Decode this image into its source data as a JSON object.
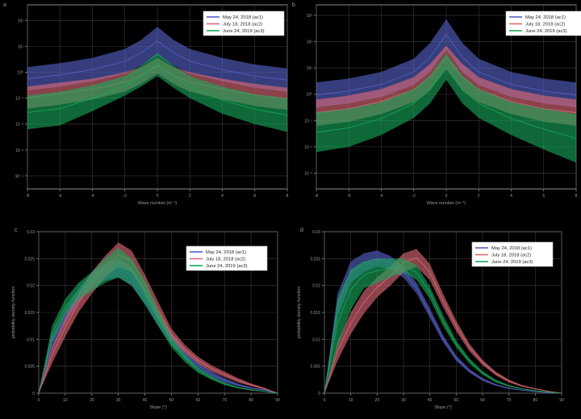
{
  "figure": {
    "background": "#000000",
    "axis_color": "#8a8a8a",
    "grid_color": "#3a3a3a",
    "text_color": "#9a9a9a",
    "series_colors": {
      "ac1": "#5563c8",
      "ac2": "#e06a78",
      "ac3": "#19a85a"
    }
  },
  "chart_data": [
    {
      "type": "area",
      "panel_label": "a",
      "title": "",
      "xlabel": "Wave number (m⁻¹)",
      "ylabel": "",
      "x_ticks": [
        "-8",
        "-6",
        "-4",
        "-2",
        "0",
        "2",
        "4",
        "6",
        "8"
      ],
      "xlim": [
        -8,
        8
      ],
      "y_log": true,
      "ylim": [
        -4.5,
        2.6
      ],
      "y_ticks": [
        "10⁻⁴",
        "10⁻³",
        "10⁻²",
        "10⁻¹",
        "10⁰",
        "10¹",
        "10²"
      ],
      "grid": true,
      "legend_position": "top-right",
      "x": [
        -8,
        -6,
        -4,
        -2,
        -1,
        0,
        1,
        2,
        4,
        6,
        8
      ],
      "series": [
        {
          "name": "May 24, 2018 (ac1)",
          "key": "ac1",
          "lower": [
            -0.7,
            -0.55,
            -0.35,
            -0.05,
            0.25,
            0.65,
            0.25,
            -0.05,
            -0.35,
            -0.6,
            -0.75
          ],
          "upper": [
            0.2,
            0.35,
            0.55,
            0.9,
            1.25,
            1.75,
            1.25,
            0.9,
            0.55,
            0.3,
            0.15
          ]
        },
        {
          "name": "July 18, 2018 (ac2)",
          "key": "ac2",
          "lower": [
            -1.4,
            -1.25,
            -1.05,
            -0.75,
            -0.45,
            -0.05,
            -0.45,
            -0.75,
            -1.05,
            -1.3,
            -1.45
          ],
          "upper": [
            -0.55,
            -0.4,
            -0.25,
            0.0,
            0.2,
            0.55,
            0.2,
            0.0,
            -0.25,
            -0.45,
            -0.6
          ]
        },
        {
          "name": "June 24, 2019 (ac3)",
          "key": "ac3",
          "lower": [
            -2.2,
            -2.05,
            -1.5,
            -0.9,
            -0.55,
            -0.15,
            -0.6,
            -1.0,
            -1.6,
            -2.0,
            -2.3
          ],
          "upper": [
            -0.9,
            -0.75,
            -0.5,
            -0.15,
            0.25,
            0.75,
            0.25,
            -0.15,
            -0.55,
            -0.85,
            -1.0
          ]
        }
      ]
    },
    {
      "type": "area",
      "panel_label": "b",
      "title": "",
      "xlabel": "Wave number (m⁻¹)",
      "ylabel": "",
      "x_ticks": [
        "-8",
        "-6",
        "-4",
        "-2",
        "0",
        "2",
        "4",
        "6",
        "8"
      ],
      "xlim": [
        -8,
        8
      ],
      "y_log": true,
      "ylim": [
        -3.6,
        3.4
      ],
      "y_ticks": [
        "10⁻³",
        "10⁻²",
        "10⁻¹",
        "10⁰",
        "10¹",
        "10²",
        "10³"
      ],
      "grid": true,
      "legend_position": "top-right",
      "x": [
        -8,
        -6,
        -4,
        -2,
        -1,
        0,
        1,
        2,
        4,
        6,
        8
      ],
      "series": [
        {
          "name": "May 24, 2018 (ac1)",
          "key": "ac1",
          "lower": [
            -0.5,
            -0.35,
            -0.1,
            0.35,
            0.85,
            1.7,
            0.85,
            0.35,
            -0.1,
            -0.35,
            -0.5
          ],
          "upper": [
            0.45,
            0.6,
            0.85,
            1.35,
            1.95,
            2.85,
            1.95,
            1.35,
            0.85,
            0.6,
            0.45
          ]
        },
        {
          "name": "July 18, 2018 (ac2)",
          "key": "ac2",
          "lower": [
            -1.2,
            -1.05,
            -0.75,
            -0.3,
            0.15,
            0.95,
            0.15,
            -0.3,
            -0.75,
            -1.05,
            -1.2
          ],
          "upper": [
            -0.2,
            -0.05,
            0.2,
            0.65,
            1.15,
            1.85,
            1.15,
            0.65,
            0.2,
            -0.05,
            -0.2
          ]
        },
        {
          "name": "June 24, 2019 (ac3)",
          "key": "ac3",
          "lower": [
            -2.2,
            -2.0,
            -1.55,
            -0.9,
            -0.35,
            0.55,
            -0.35,
            -0.9,
            -1.55,
            -2.1,
            -2.6
          ],
          "upper": [
            -0.7,
            -0.55,
            -0.3,
            0.2,
            0.7,
            1.55,
            0.7,
            0.2,
            -0.3,
            -0.55,
            -0.75
          ]
        }
      ]
    },
    {
      "type": "area",
      "panel_label": "c",
      "title": "",
      "xlabel": "Slope (°)",
      "ylabel": "probability density function",
      "x_ticks": [
        "0",
        "10",
        "20",
        "30",
        "40",
        "50",
        "60",
        "70",
        "80",
        "90"
      ],
      "xlim": [
        0,
        90
      ],
      "y_ticks": [
        "0",
        "0.005",
        "0.01",
        "0.015",
        "0.02",
        "0.025",
        "0.03"
      ],
      "ylim": [
        0,
        0.03
      ],
      "grid": true,
      "legend_position": "top-right",
      "x": [
        0,
        5,
        10,
        15,
        20,
        25,
        30,
        35,
        40,
        45,
        50,
        55,
        60,
        65,
        70,
        75,
        80,
        85,
        90
      ],
      "series": [
        {
          "name": "May 24, 2018 (ac1)",
          "key": "ac1",
          "lower": [
            0.0,
            0.008,
            0.013,
            0.017,
            0.0195,
            0.021,
            0.0215,
            0.02,
            0.0165,
            0.0125,
            0.009,
            0.0065,
            0.0045,
            0.003,
            0.002,
            0.0013,
            0.0008,
            0.0005,
            0.0
          ],
          "upper": [
            0.0,
            0.0105,
            0.0155,
            0.0195,
            0.0225,
            0.024,
            0.025,
            0.0235,
            0.0195,
            0.015,
            0.011,
            0.008,
            0.0058,
            0.004,
            0.0028,
            0.0018,
            0.0011,
            0.0007,
            0.0
          ]
        },
        {
          "name": "July 18, 2018 (ac2)",
          "key": "ac2",
          "lower": [
            0.0,
            0.0055,
            0.0105,
            0.015,
            0.0185,
            0.0215,
            0.0235,
            0.0225,
            0.0185,
            0.014,
            0.01,
            0.0075,
            0.0055,
            0.004,
            0.003,
            0.002,
            0.0013,
            0.0007,
            0.0
          ],
          "upper": [
            0.0,
            0.0085,
            0.014,
            0.0185,
            0.0225,
            0.0255,
            0.028,
            0.0265,
            0.022,
            0.017,
            0.012,
            0.009,
            0.0068,
            0.0052,
            0.004,
            0.0028,
            0.0018,
            0.001,
            0.0
          ]
        },
        {
          "name": "June 24, 2019 (ac3)",
          "key": "ac3",
          "lower": [
            0.0,
            0.0095,
            0.0145,
            0.0175,
            0.019,
            0.0205,
            0.0215,
            0.02,
            0.0165,
            0.0125,
            0.0085,
            0.0058,
            0.0038,
            0.0025,
            0.0015,
            0.0009,
            0.0005,
            0.0003,
            0.0
          ],
          "upper": [
            0.0,
            0.0125,
            0.0175,
            0.0205,
            0.0225,
            0.025,
            0.027,
            0.025,
            0.021,
            0.0155,
            0.0105,
            0.0072,
            0.0048,
            0.0032,
            0.002,
            0.0012,
            0.0007,
            0.0004,
            0.0
          ]
        }
      ]
    },
    {
      "type": "area",
      "panel_label": "d",
      "title": "",
      "xlabel": "Slope (°)",
      "ylabel": "probability density function",
      "x_ticks": [
        "0",
        "10",
        "20",
        "30",
        "40",
        "50",
        "60",
        "70",
        "80",
        "90"
      ],
      "xlim": [
        0,
        90
      ],
      "y_ticks": [
        "0",
        "0.005",
        "0.01",
        "0.015",
        "0.02",
        "0.025",
        "0.03"
      ],
      "ylim": [
        0,
        0.03
      ],
      "grid": true,
      "legend_position": "top-right",
      "x": [
        0,
        5,
        10,
        15,
        20,
        25,
        30,
        35,
        40,
        45,
        50,
        55,
        60,
        65,
        70,
        75,
        80,
        85,
        90
      ],
      "series": [
        {
          "name": "May 24, 2018 (ac1)",
          "key": "ac1",
          "lower": [
            0.0,
            0.014,
            0.0205,
            0.0225,
            0.0235,
            0.023,
            0.0215,
            0.0185,
            0.014,
            0.0095,
            0.006,
            0.0038,
            0.0023,
            0.0014,
            0.0008,
            0.0005,
            0.0003,
            0.0001,
            0.0
          ],
          "upper": [
            0.0,
            0.0185,
            0.0245,
            0.026,
            0.0265,
            0.0255,
            0.0235,
            0.0205,
            0.0158,
            0.0108,
            0.007,
            0.0045,
            0.0028,
            0.0017,
            0.001,
            0.0006,
            0.0003,
            0.0001,
            0.0
          ]
        },
        {
          "name": "July 18, 2018 (ac2)",
          "key": "ac2",
          "lower": [
            0.0,
            0.006,
            0.011,
            0.0148,
            0.0178,
            0.02,
            0.0225,
            0.0235,
            0.021,
            0.016,
            0.0115,
            0.0078,
            0.0052,
            0.0033,
            0.002,
            0.0012,
            0.0007,
            0.0003,
            0.0
          ],
          "upper": [
            0.0,
            0.0095,
            0.015,
            0.019,
            0.0215,
            0.0235,
            0.026,
            0.0268,
            0.024,
            0.0185,
            0.0135,
            0.0092,
            0.0062,
            0.004,
            0.0025,
            0.0015,
            0.0009,
            0.0004,
            0.0
          ]
        },
        {
          "name": "June 24, 2019 (ac3)",
          "key": "ac3",
          "lower": [
            0.0,
            0.0085,
            0.0155,
            0.0195,
            0.0205,
            0.0215,
            0.0225,
            0.021,
            0.0175,
            0.0125,
            0.0085,
            0.0055,
            0.0034,
            0.002,
            0.0012,
            0.0007,
            0.0004,
            0.0002,
            0.0
          ],
          "upper": [
            0.0,
            0.0175,
            0.023,
            0.0245,
            0.025,
            0.025,
            0.025,
            0.0238,
            0.0198,
            0.0145,
            0.0098,
            0.0065,
            0.0041,
            0.0025,
            0.0015,
            0.0009,
            0.0005,
            0.0002,
            0.0
          ]
        }
      ]
    }
  ]
}
